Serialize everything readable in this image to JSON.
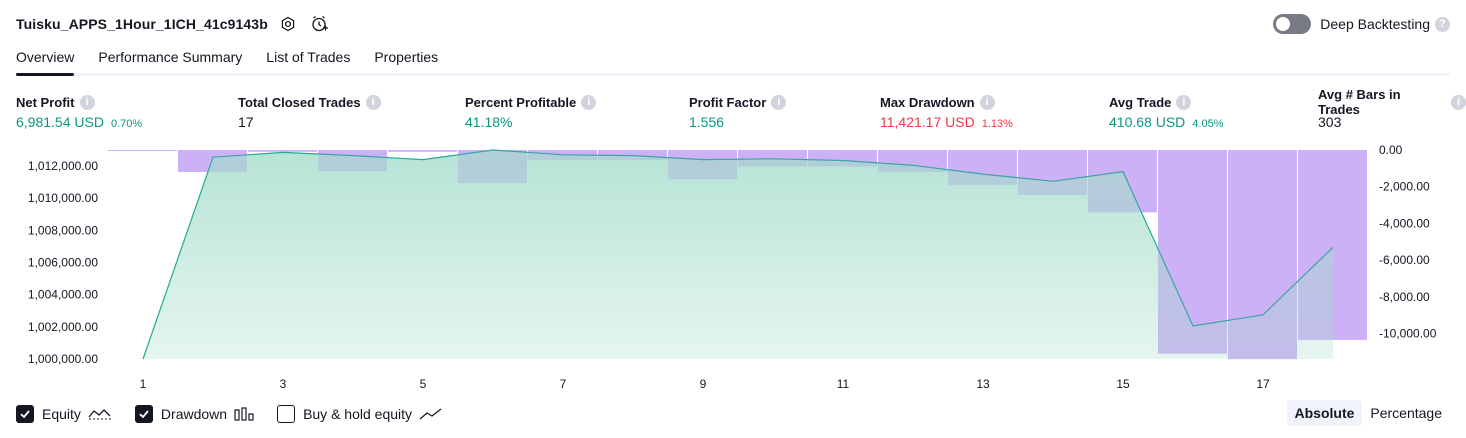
{
  "header": {
    "strategy_name": "Tuisku_APPS_1Hour_1ICH_41c9143b",
    "icons": [
      "settings-icon",
      "add-alert-icon"
    ],
    "deep_backtesting_label": "Deep Backtesting",
    "deep_backtesting_enabled": false,
    "help_glyph": "?"
  },
  "tabs": [
    {
      "label": "Overview",
      "active": true
    },
    {
      "label": "Performance Summary",
      "active": false
    },
    {
      "label": "List of Trades",
      "active": false
    },
    {
      "label": "Properties",
      "active": false
    }
  ],
  "stats": [
    {
      "label": "Net Profit",
      "value": "6,981.54 USD",
      "sub": "0.70%",
      "color": "green"
    },
    {
      "label": "Total Closed Trades",
      "value": "17",
      "sub": "",
      "color": "dark"
    },
    {
      "label": "Percent Profitable",
      "value": "41.18%",
      "sub": "",
      "color": "green"
    },
    {
      "label": "Profit Factor",
      "value": "1.556",
      "sub": "",
      "color": "green"
    },
    {
      "label": "Max Drawdown",
      "value": "11,421.17 USD",
      "sub": "1.13%",
      "color": "red"
    },
    {
      "label": "Avg Trade",
      "value": "410.68 USD",
      "sub": "4.05%",
      "color": "green"
    },
    {
      "label": "Avg # Bars in Trades",
      "value": "303",
      "sub": "",
      "color": "dark"
    }
  ],
  "colors": {
    "green": "#089981",
    "red": "#f23645",
    "equity_line": "#22ab94",
    "equity_fill_top": "#b6e3d5",
    "drawdown_fill": "#dcbcfd"
  },
  "chart_data": {
    "type": "area",
    "x": [
      1,
      2,
      3,
      4,
      5,
      6,
      7,
      8,
      9,
      10,
      11,
      12,
      13,
      14,
      15,
      16,
      17,
      18
    ],
    "x_ticks": [
      "1",
      "3",
      "5",
      "7",
      "9",
      "11",
      "13",
      "15",
      "17"
    ],
    "series": [
      {
        "name": "Equity",
        "axis": "left",
        "values": [
          1000000,
          1012550,
          1012850,
          1012650,
          1012400,
          1013000,
          1012700,
          1012650,
          1012400,
          1012450,
          1012350,
          1012050,
          1011500,
          1011050,
          1011650,
          1002050,
          1002750,
          1006950
        ]
      },
      {
        "name": "Drawdown",
        "axis": "right",
        "type": "bar",
        "values": [
          0,
          -1200,
          -100,
          -1150,
          -100,
          -1800,
          -550,
          -550,
          -1600,
          -900,
          -900,
          -1200,
          -1900,
          -2450,
          -3400,
          -11100,
          -11400,
          -10350
        ]
      }
    ],
    "y_left_ticks": [
      "1,012,000.00",
      "1,010,000.00",
      "1,008,000.00",
      "1,006,000.00",
      "1,004,000.00",
      "1,002,000.00",
      "1,000,000.00"
    ],
    "y_left_range": [
      1000000,
      1013000
    ],
    "y_right_ticks": [
      "0.00",
      "-2,000.00",
      "-4,000.00",
      "-6,000.00",
      "-8,000.00",
      "-10,000.00"
    ],
    "y_right_range": [
      -11500,
      0
    ],
    "grid": false
  },
  "legend": [
    {
      "label": "Equity",
      "checked": true,
      "icon": "equity-line-icon"
    },
    {
      "label": "Drawdown",
      "checked": true,
      "icon": "drawdown-bars-icon"
    },
    {
      "label": "Buy & hold equity",
      "checked": false,
      "icon": "buy-hold-line-icon"
    }
  ],
  "modes": [
    {
      "label": "Absolute",
      "active": true
    },
    {
      "label": "Percentage",
      "active": false
    }
  ]
}
